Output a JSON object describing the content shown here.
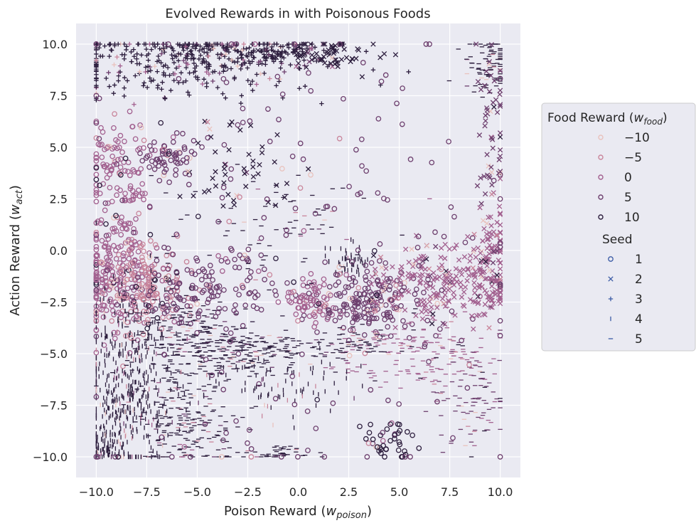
{
  "chart_data": {
    "type": "scatter",
    "title": "Evolved Rewards in with Poisonous Foods",
    "xlabel": {
      "main": "Poison Reward (",
      "sym": "w",
      "sub": "poison",
      "end": ")"
    },
    "ylabel": {
      "main": "Action Reward (",
      "sym": "w",
      "sub": "act",
      "end": ")"
    },
    "xlim": [
      -11,
      11
    ],
    "ylim": [
      -11,
      11
    ],
    "xticks": [
      -10,
      -7.5,
      -5,
      -2.5,
      0,
      2.5,
      5,
      7.5,
      10
    ],
    "xtick_labels": [
      "−10.0",
      "−7.5",
      "−5.0",
      "−2.5",
      "0.0",
      "2.5",
      "5.0",
      "7.5",
      "10.0"
    ],
    "yticks": [
      10,
      7.5,
      5,
      2.5,
      0,
      -2.5,
      -5,
      -7.5,
      -10
    ],
    "ytick_labels": [
      "10.0",
      "7.5",
      "5.0",
      "2.5",
      "0.0",
      "−2.5",
      "−5.0",
      "−7.5",
      "−10.0"
    ],
    "grid": true,
    "hue": {
      "title_main": "Food Reward (",
      "title_sym": "w",
      "title_sub": "food",
      "title_end": ")",
      "levels": [
        {
          "label": "−10",
          "value": -10,
          "color": "#e9c2bd"
        },
        {
          "label": "−5",
          "value": -5,
          "color": "#c9859b"
        },
        {
          "label": "0",
          "value": 0,
          "color": "#a2608f"
        },
        {
          "label": "5",
          "value": 5,
          "color": "#6d3f6e"
        },
        {
          "label": "10",
          "value": 10,
          "color": "#2d1e3e"
        }
      ]
    },
    "style": {
      "title": "Seed",
      "levels": [
        {
          "label": "1",
          "marker": "circle"
        },
        {
          "label": "2",
          "marker": "x"
        },
        {
          "label": "3",
          "marker": "plus"
        },
        {
          "label": "4",
          "marker": "vline"
        },
        {
          "label": "5",
          "marker": "hline"
        }
      ],
      "legend_color": "#3b5ba5"
    },
    "legend_placement": "outside-right",
    "clusters": [
      {
        "x": -6,
        "y": 9,
        "sx": 3.5,
        "sy": 0.9,
        "n": 320,
        "food": 10,
        "seed": 3
      },
      {
        "x": -3,
        "y": 9.7,
        "sx": 2.5,
        "sy": 0.3,
        "n": 160,
        "food": 10,
        "seed": 3
      },
      {
        "x": 1.5,
        "y": 9.6,
        "sx": 1.2,
        "sy": 0.4,
        "n": 70,
        "food": 10,
        "seed": 2
      },
      {
        "x": 9.5,
        "y": 9,
        "sx": 0.6,
        "sy": 0.7,
        "n": 90,
        "food": 10,
        "seed": 5
      },
      {
        "x": -9,
        "y": 4,
        "sx": 0.8,
        "sy": 1.2,
        "n": 110,
        "food": 0,
        "seed": 1
      },
      {
        "x": -6.5,
        "y": 4.5,
        "sx": 0.8,
        "sy": 0.5,
        "n": 60,
        "food": 5,
        "seed": 1
      },
      {
        "x": -9,
        "y": -1,
        "sx": 1.0,
        "sy": 1.4,
        "n": 240,
        "food": 0,
        "seed": 1
      },
      {
        "x": -7.5,
        "y": -2,
        "sx": 1.0,
        "sy": 1.2,
        "n": 140,
        "food": -5,
        "seed": 1
      },
      {
        "x": -8.5,
        "y": -6.5,
        "sx": 1.2,
        "sy": 2.2,
        "n": 480,
        "food": 10,
        "seed": 4
      },
      {
        "x": -5.5,
        "y": -4.5,
        "sx": 1.5,
        "sy": 1.2,
        "n": 260,
        "food": 10,
        "seed": 5
      },
      {
        "x": -5.5,
        "y": -8.5,
        "sx": 1.3,
        "sy": 1.0,
        "n": 180,
        "food": 10,
        "seed": 5
      },
      {
        "x": -2,
        "y": -4.8,
        "sx": 1.5,
        "sy": 0.6,
        "n": 170,
        "food": 10,
        "seed": 5
      },
      {
        "x": -4.5,
        "y": -1.8,
        "sx": 1.5,
        "sy": 0.8,
        "n": 120,
        "food": 5,
        "seed": 1
      },
      {
        "x": 2.5,
        "y": -0.5,
        "sx": 0.5,
        "sy": 0.4,
        "n": 50,
        "food": 10,
        "seed": 4
      },
      {
        "x": 3.5,
        "y": -2.5,
        "sx": 1.2,
        "sy": 0.9,
        "n": 170,
        "food": 5,
        "seed": 1
      },
      {
        "x": 0.5,
        "y": -2.5,
        "sx": 0.7,
        "sy": 0.5,
        "n": 70,
        "food": 0,
        "seed": 1
      },
      {
        "x": 6.5,
        "y": -1.5,
        "sx": 1.3,
        "sy": 0.9,
        "n": 170,
        "food": 0,
        "seed": 2
      },
      {
        "x": 9.5,
        "y": -1,
        "sx": 0.6,
        "sy": 1.3,
        "n": 150,
        "food": 0,
        "seed": 2
      },
      {
        "x": 6,
        "y": -5,
        "sx": 2.0,
        "sy": 0.8,
        "n": 170,
        "food": 0,
        "seed": 5
      },
      {
        "x": 3,
        "y": -4.5,
        "sx": 1.0,
        "sy": 0.4,
        "n": 60,
        "food": 10,
        "seed": 5
      },
      {
        "x": -1,
        "y": -6.5,
        "sx": 2.0,
        "sy": 0.8,
        "n": 90,
        "food": 10,
        "seed": 4
      },
      {
        "x": 8.5,
        "y": -7,
        "sx": 1.0,
        "sy": 1.5,
        "n": 90,
        "food": 5,
        "seed": 5
      },
      {
        "x": -9.5,
        "y": -9.5,
        "sx": 0.5,
        "sy": 0.4,
        "n": 60,
        "food": 10,
        "seed": 4
      },
      {
        "x": -1,
        "y": -9.8,
        "sx": 1.0,
        "sy": 0.2,
        "n": 40,
        "food": 10,
        "seed": 5
      },
      {
        "x": 4.5,
        "y": -9.3,
        "sx": 0.6,
        "sy": 0.5,
        "n": 40,
        "food": 10,
        "seed": 1
      },
      {
        "x": -3,
        "y": 4,
        "sx": 1.5,
        "sy": 1.2,
        "n": 50,
        "food": 10,
        "seed": 2
      },
      {
        "x": 9.6,
        "y": 5,
        "sx": 0.4,
        "sy": 2.0,
        "n": 60,
        "food": 5,
        "seed": 2
      },
      {
        "x": -1,
        "y": 1,
        "sx": 3.0,
        "sy": 1.5,
        "n": 80,
        "food": 10,
        "seed": 5
      },
      {
        "x": 0,
        "y": 0,
        "sx": 6,
        "sy": 6,
        "n": 220,
        "food": 5,
        "seed": 1
      }
    ]
  }
}
